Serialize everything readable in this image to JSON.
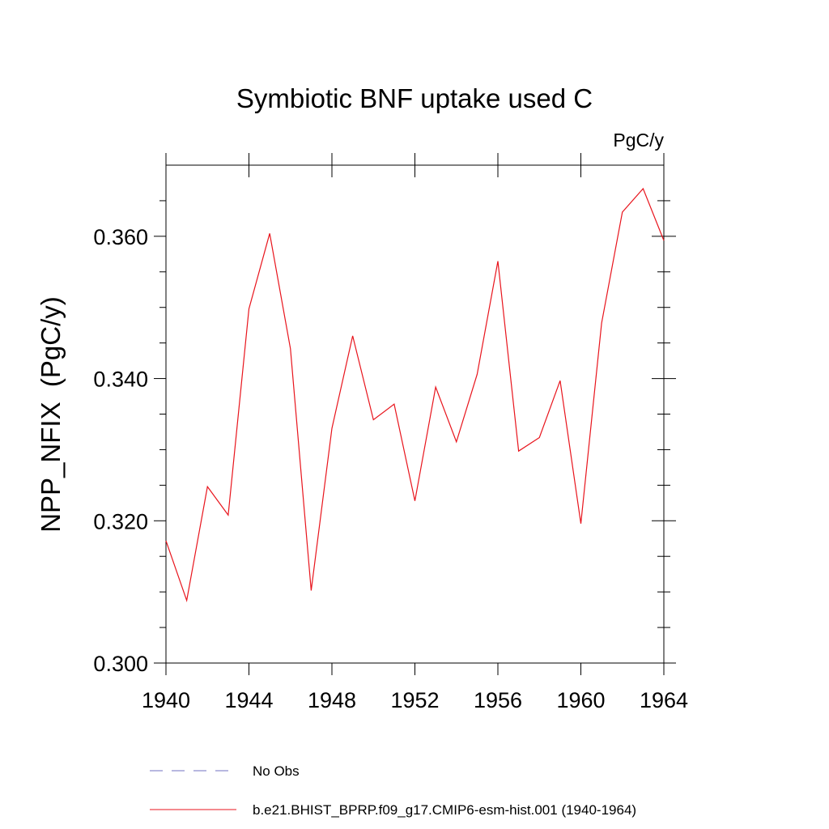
{
  "chart_data": {
    "type": "line",
    "title": "Symbiotic BNF uptake used C",
    "units_label": "PgC/y",
    "ylabel": "NPP_NFIX  (PgC/y)",
    "xlabel": "",
    "xlim": [
      1940,
      1964
    ],
    "ylim": [
      0.3,
      0.37
    ],
    "x_ticks": [
      1940,
      1944,
      1948,
      1952,
      1956,
      1960,
      1964
    ],
    "x_tick_labels": [
      "1940",
      "1944",
      "1948",
      "1952",
      "1956",
      "1960",
      "1964"
    ],
    "y_ticks": [
      0.3,
      0.32,
      0.34,
      0.36
    ],
    "y_tick_labels": [
      "0.300",
      "0.320",
      "0.340",
      "0.360"
    ],
    "y_minor_step": 0.005,
    "x_minor_step": 1,
    "series": [
      {
        "name": "b.e21.BHIST_BPRP.f09_g17.CMIP6-esm-hist.001 (1940-1964)",
        "color": "#e8141c",
        "dash": "solid",
        "x": [
          1940,
          1941,
          1942,
          1943,
          1944,
          1945,
          1946,
          1947,
          1948,
          1949,
          1950,
          1951,
          1952,
          1953,
          1954,
          1955,
          1956,
          1957,
          1958,
          1959,
          1960,
          1961,
          1962,
          1963,
          1964
        ],
        "values": [
          0.3172,
          0.3088,
          0.3248,
          0.3208,
          0.3498,
          0.3604,
          0.3442,
          0.3102,
          0.333,
          0.346,
          0.3342,
          0.3364,
          0.3228,
          0.3388,
          0.3311,
          0.3406,
          0.3565,
          0.3298,
          0.3317,
          0.3397,
          0.3196,
          0.3478,
          0.3634,
          0.3667,
          0.3594
        ]
      }
    ],
    "legend": [
      {
        "label": "No Obs",
        "color": "#7070c0",
        "dash": "dashed"
      },
      {
        "label": "b.e21.BHIST_BPRP.f09_g17.CMIP6-esm-hist.001 (1940-1964)",
        "color": "#e8141c",
        "dash": "solid"
      }
    ],
    "legend_position": "bottom",
    "grid": false
  }
}
